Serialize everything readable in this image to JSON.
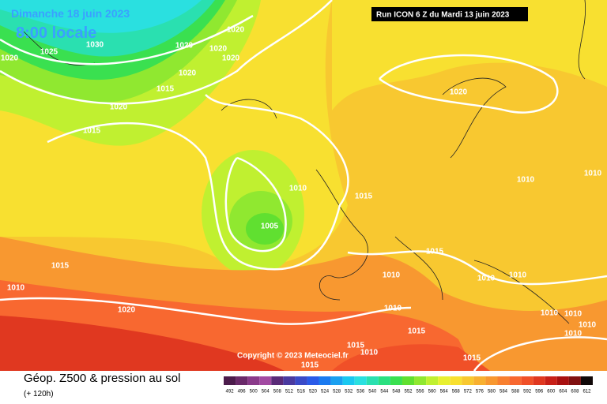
{
  "header": {
    "date": "Dimanche 18 juin 2023",
    "time": "8:00 locale",
    "run": "Run ICON 6 Z du Mardi 13 juin 2023"
  },
  "copyright": "Copyright © 2023 Meteociel.fr",
  "footer": {
    "title": "Géop. Z500 & pression au sol",
    "lead": "(+ 120h)"
  },
  "legend": {
    "levels": [
      492,
      496,
      500,
      504,
      508,
      512,
      516,
      520,
      524,
      528,
      532,
      536,
      540,
      544,
      548,
      552,
      556,
      560,
      564,
      568,
      572,
      576,
      580,
      584,
      588,
      592,
      596,
      600,
      604,
      608,
      612
    ],
    "colors": [
      "#4c1c4c",
      "#6a2a6a",
      "#8a3a8a",
      "#a24aa2",
      "#5a2a78",
      "#4a3aa0",
      "#3a4ac8",
      "#2a5ae8",
      "#1a7af0",
      "#1aa0f0",
      "#1ac8f0",
      "#2ae0e0",
      "#2ae0b0",
      "#2ae080",
      "#3ae050",
      "#60e030",
      "#90e830",
      "#c0f030",
      "#e8f030",
      "#f8e030",
      "#f8c830",
      "#f8b030",
      "#f89830",
      "#f88030",
      "#f86830",
      "#f05028",
      "#e03820",
      "#c82018",
      "#a81010",
      "#801010",
      "#100808"
    ]
  },
  "isobar_labels": [
    1020,
    1025,
    1030,
    1020,
    1020,
    1020,
    1020,
    1020,
    1015,
    1020,
    1015,
    1020,
    1010,
    1015,
    1010,
    1010,
    1005,
    1015,
    1010,
    1015,
    1010,
    1010,
    1010,
    1010,
    1020,
    1015,
    1010,
    1010,
    1010,
    1010,
    1015,
    1010,
    1015,
    1015
  ]
}
